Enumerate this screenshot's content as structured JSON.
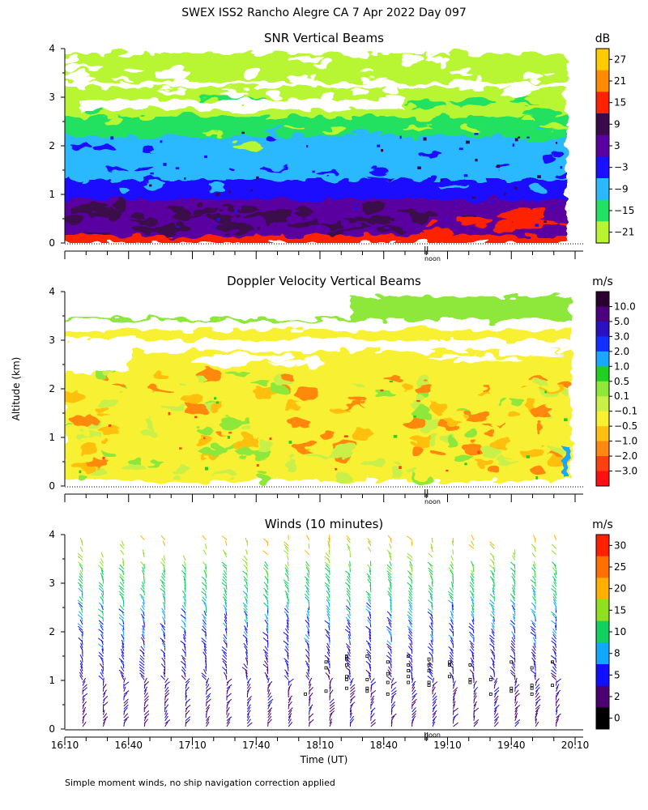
{
  "figure": {
    "title": "SWEX ISS2 Rancho Alegre CA   7 Apr 2022 Day 097",
    "ylabel_shared": "Altitude (km)",
    "xlabel": "Time (UT)",
    "footnote": "Simple moment winds, no ship navigation correction applied",
    "noon_label": "noon"
  },
  "chart_data": [
    {
      "type": "heatmap",
      "title": "SNR Vertical Beams",
      "ylabel": "Altitude (km)",
      "xlabel": "",
      "ylim": [
        0,
        4
      ],
      "yticks": [
        "0",
        "1",
        "2",
        "3",
        "4"
      ],
      "xlim": [
        "16:10",
        "20:10"
      ],
      "colorbar": {
        "unit": "dB",
        "labels": [
          "27",
          "21",
          "15",
          "9",
          "3",
          "−3",
          "−9",
          "−15",
          "−21"
        ],
        "colors": [
          "#ffcc00",
          "#ff8c00",
          "#ff2200",
          "#3a0a4a",
          "#5a00a0",
          "#1a10ff",
          "#2ab8ff",
          "#22e060",
          "#b8f530"
        ]
      },
      "layers": [
        {
          "from_km": 0.0,
          "to_km": 0.15,
          "value_db": 15
        },
        {
          "from_km": 0.15,
          "to_km": 0.9,
          "value_db": 3
        },
        {
          "from_km": 0.9,
          "to_km": 1.3,
          "value_db": -3
        },
        {
          "from_km": 1.3,
          "to_km": 2.2,
          "value_db": -9
        },
        {
          "from_km": 2.2,
          "to_km": 2.6,
          "value_db": -15
        },
        {
          "from_km": 2.6,
          "to_km": 3.0,
          "value_db": -21
        },
        {
          "from_km": 3.0,
          "to_km": 3.2,
          "value_db": -21
        },
        {
          "from_km": 3.3,
          "to_km": 3.9,
          "value_db": -21
        }
      ]
    },
    {
      "type": "heatmap",
      "title": "Doppler Velocity Vertical Beams",
      "ylabel": "Altitude (km)",
      "xlabel": "",
      "ylim": [
        0,
        4
      ],
      "yticks": [
        "0",
        "1",
        "2",
        "3",
        "4"
      ],
      "xlim": [
        "16:10",
        "20:10"
      ],
      "colorbar": {
        "unit": "m/s",
        "labels": [
          "10.0",
          "5.0",
          "3.0",
          "2.0",
          "1.0",
          "0.5",
          "0.1",
          "−0.1",
          "−0.5",
          "−1.0",
          "−2.0",
          "−3.0"
        ],
        "colors": [
          "#2a0030",
          "#4b0080",
          "#2a10c0",
          "#1030ff",
          "#18a8ff",
          "#20d020",
          "#8ee83a",
          "#c8f048",
          "#f8f030",
          "#ffc010",
          "#ff8810",
          "#ff4010",
          "#ff1010"
        ]
      },
      "layers": [
        {
          "from_km": 0.1,
          "to_km": 2.3,
          "value_ms": -0.3
        },
        {
          "from_km": 2.3,
          "to_km": 2.8,
          "value_ms": -0.5
        },
        {
          "from_km": 3.0,
          "to_km": 3.2,
          "value_ms": -0.3
        },
        {
          "from_km": 3.4,
          "to_km": 3.9,
          "value_ms": 0.1
        }
      ]
    },
    {
      "type": "scatter",
      "title": "Winds (10 minutes)",
      "ylabel": "Altitude (km)",
      "xlabel": "Time (UT)",
      "ylim": [
        0,
        4
      ],
      "yticks": [
        "0",
        "1",
        "2",
        "3",
        "4"
      ],
      "xticks": [
        "16:10",
        "16:40",
        "17:10",
        "17:40",
        "18:10",
        "18:40",
        "19:10",
        "19:40",
        "20:10"
      ],
      "colorbar": {
        "unit": "m/s",
        "labels": [
          "30",
          "25",
          "20",
          "15",
          "10",
          "8",
          "5",
          "2",
          "0"
        ],
        "colors": [
          "#ff2000",
          "#ff7000",
          "#ffb000",
          "#90e020",
          "#10d060",
          "#10a8ff",
          "#1010ff",
          "#4a0070",
          "#000000"
        ]
      },
      "profiles": 24,
      "speed_profile": [
        {
          "height_km": 0.3,
          "speed_ms": 4
        },
        {
          "height_km": 1.0,
          "speed_ms": 5
        },
        {
          "height_km": 2.0,
          "speed_ms": 7
        },
        {
          "height_km": 2.6,
          "speed_ms": 10
        },
        {
          "height_km": 3.2,
          "speed_ms": 14
        },
        {
          "height_km": 3.9,
          "speed_ms": 22
        }
      ]
    }
  ]
}
